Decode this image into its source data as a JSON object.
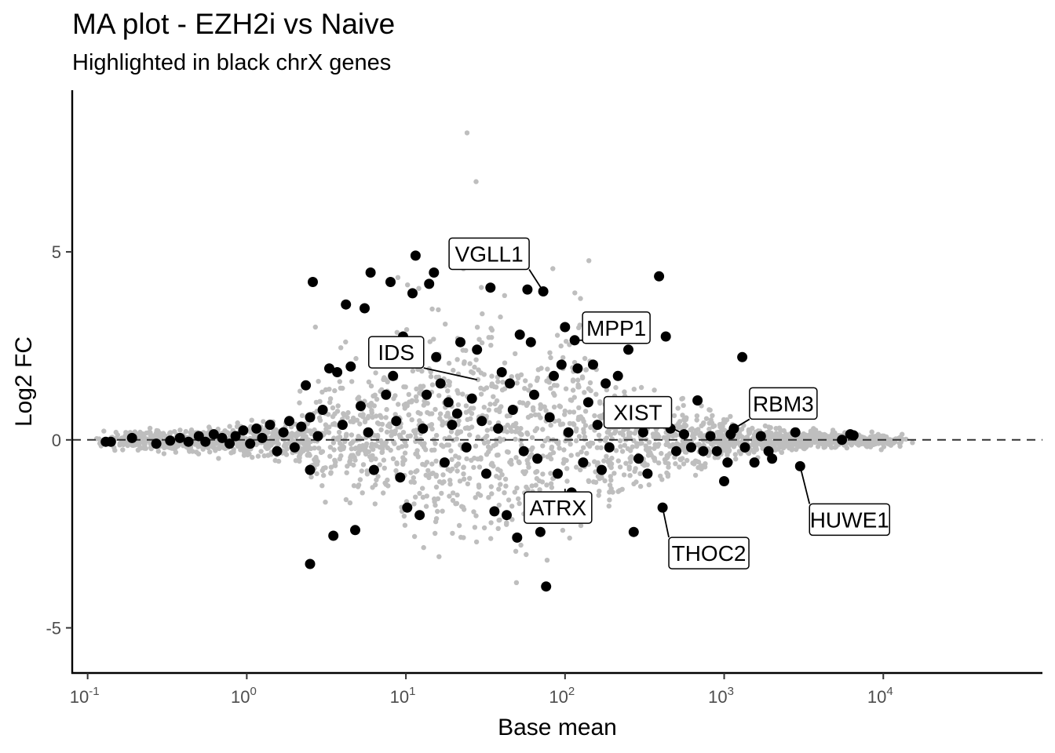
{
  "chart_data": {
    "type": "scatter",
    "title": "MA plot - EZH2i vs Naive",
    "subtitle": "Highlighted in black chrX genes",
    "xlabel": "Base mean",
    "ylabel": "Log2 FC",
    "xscale": "log10",
    "xlim": [
      0.08,
      100000
    ],
    "ylim": [
      -6.2,
      9.3
    ],
    "x_ticks": [
      {
        "value": 0.1,
        "base": "10",
        "exp": "-1"
      },
      {
        "value": 1,
        "base": "10",
        "exp": "0"
      },
      {
        "value": 10,
        "base": "10",
        "exp": "1"
      },
      {
        "value": 100,
        "base": "10",
        "exp": "2"
      },
      {
        "value": 1000,
        "base": "10",
        "exp": "3"
      },
      {
        "value": 10000,
        "base": "10",
        "exp": "4"
      }
    ],
    "y_ticks": [
      {
        "value": -5,
        "label": "-5"
      },
      {
        "value": 0,
        "label": "0"
      },
      {
        "value": 5,
        "label": "5"
      }
    ],
    "reference_line": {
      "y": 0,
      "style": "dashed"
    },
    "colors": {
      "background_genes": "#bebebe",
      "chrX_genes": "#000000",
      "refline": "#333333",
      "axis": "#000000"
    },
    "series": [
      {
        "name": "chrX genes",
        "color": "#000000",
        "points": [
          [
            0.13,
            -0.05
          ],
          [
            0.14,
            -0.05
          ],
          [
            0.19,
            0.05
          ],
          [
            0.27,
            -0.1
          ],
          [
            0.33,
            -0.02
          ],
          [
            0.38,
            0.05
          ],
          [
            0.43,
            -0.05
          ],
          [
            0.5,
            0.1
          ],
          [
            0.55,
            -0.05
          ],
          [
            0.62,
            0.15
          ],
          [
            0.7,
            0.05
          ],
          [
            0.78,
            -0.1
          ],
          [
            0.85,
            0.1
          ],
          [
            0.95,
            0.25
          ],
          [
            1.05,
            -0.1
          ],
          [
            1.15,
            0.3
          ],
          [
            1.25,
            0.05
          ],
          [
            1.4,
            0.4
          ],
          [
            1.55,
            -0.3
          ],
          [
            1.7,
            0.2
          ],
          [
            1.85,
            0.5
          ],
          [
            2.0,
            -0.2
          ],
          [
            2.2,
            0.35
          ],
          [
            2.35,
            1.45
          ],
          [
            2.5,
            0.6
          ],
          [
            2.5,
            -0.8
          ],
          [
            2.5,
            -3.3
          ],
          [
            2.6,
            4.2
          ],
          [
            2.8,
            0.1
          ],
          [
            3.0,
            0.8
          ],
          [
            3.3,
            1.9
          ],
          [
            3.5,
            -2.55
          ],
          [
            3.7,
            1.8
          ],
          [
            4.0,
            0.4
          ],
          [
            4.2,
            3.6
          ],
          [
            4.5,
            1.95
          ],
          [
            4.8,
            -2.4
          ],
          [
            5.2,
            0.9
          ],
          [
            5.5,
            3.5
          ],
          [
            5.8,
            0.2
          ],
          [
            6.0,
            4.45
          ],
          [
            6.3,
            -0.8
          ],
          [
            6.6,
            2.3
          ],
          [
            7.0,
            2.5
          ],
          [
            7.5,
            1.2
          ],
          [
            8.0,
            4.2
          ],
          [
            8.3,
            1.7
          ],
          [
            8.7,
            0.5
          ],
          [
            9.2,
            -1.0
          ],
          [
            9.6,
            2.75
          ],
          [
            10.2,
            -1.8
          ],
          [
            11.0,
            3.9
          ],
          [
            11.5,
            4.9
          ],
          [
            12.2,
            -2.0
          ],
          [
            12.8,
            0.3
          ],
          [
            13.5,
            1.2
          ],
          [
            14.0,
            4.15
          ],
          [
            15.0,
            4.45
          ],
          [
            15.5,
            2.2
          ],
          [
            16.5,
            1.5
          ],
          [
            17.5,
            -0.6
          ],
          [
            18.5,
            1.0
          ],
          [
            19.5,
            0.4
          ],
          [
            21.0,
            0.7
          ],
          [
            22.0,
            2.6
          ],
          [
            24.0,
            -0.2
          ],
          [
            26.0,
            1.1
          ],
          [
            28.0,
            2.4
          ],
          [
            30.0,
            0.5
          ],
          [
            32.0,
            -0.9
          ],
          [
            34.0,
            4.05
          ],
          [
            36.0,
            -1.9
          ],
          [
            38.0,
            0.3
          ],
          [
            40.0,
            1.8
          ],
          [
            43.0,
            -2.0
          ],
          [
            45.0,
            1.5
          ],
          [
            47.0,
            0.8
          ],
          [
            50.0,
            -2.6
          ],
          [
            52.0,
            2.8
          ],
          [
            55.0,
            -0.3
          ],
          [
            58.0,
            4.0
          ],
          [
            61.0,
            2.6
          ],
          [
            64.0,
            1.2
          ],
          [
            67.0,
            -0.5
          ],
          [
            70.0,
            -2.45
          ],
          [
            73.0,
            3.95
          ],
          [
            76.0,
            -3.9
          ],
          [
            80.0,
            0.6
          ],
          [
            85.0,
            1.7
          ],
          [
            90.0,
            -0.9
          ],
          [
            95.0,
            2.0
          ],
          [
            100.0,
            3.0
          ],
          [
            105.0,
            0.2
          ],
          [
            110.0,
            -1.4
          ],
          [
            115.0,
            2.65
          ],
          [
            120.0,
            1.9
          ],
          [
            130.0,
            -0.6
          ],
          [
            140.0,
            1.0
          ],
          [
            150.0,
            2.0
          ],
          [
            160.0,
            0.4
          ],
          [
            170.0,
            -0.8
          ],
          [
            180.0,
            1.5
          ],
          [
            190.0,
            -0.2
          ],
          [
            200.0,
            0.9
          ],
          [
            215.0,
            1.7
          ],
          [
            230.0,
            0.6
          ],
          [
            250.0,
            2.4
          ],
          [
            270.0,
            -2.45
          ],
          [
            290.0,
            -0.5
          ],
          [
            310.0,
            0.2
          ],
          [
            330.0,
            -0.9
          ],
          [
            360.0,
            0.8
          ],
          [
            390.0,
            4.35
          ],
          [
            410.0,
            -1.8
          ],
          [
            430.0,
            2.75
          ],
          [
            460.0,
            0.3
          ],
          [
            500.0,
            -0.3
          ],
          [
            560.0,
            0.15
          ],
          [
            620.0,
            -0.2
          ],
          [
            680.0,
            1.05
          ],
          [
            740.0,
            -0.3
          ],
          [
            820.0,
            0.1
          ],
          [
            900.0,
            -0.3
          ],
          [
            1000.0,
            -1.1
          ],
          [
            1050.0,
            -0.6
          ],
          [
            1100.0,
            0.15
          ],
          [
            1150.0,
            0.3
          ],
          [
            1300.0,
            2.2
          ],
          [
            1350.0,
            -0.2
          ],
          [
            1550.0,
            -0.6
          ],
          [
            1700.0,
            0.1
          ],
          [
            1900.0,
            -0.3
          ],
          [
            2000.0,
            -0.5
          ],
          [
            2800.0,
            0.2
          ],
          [
            3000.0,
            -0.7
          ],
          [
            5500.0,
            0.0
          ],
          [
            6200.0,
            0.15
          ],
          [
            6500.0,
            0.12
          ]
        ]
      }
    ],
    "labels": [
      {
        "text": "VGLL1",
        "x": 73.0,
        "y": 3.95
      },
      {
        "text": "MPP1",
        "x": 115.0,
        "y": 2.65
      },
      {
        "text": "IDS",
        "x": 28.0,
        "y": 1.6
      },
      {
        "text": "XIST",
        "x": 560.0,
        "y": 0.15
      },
      {
        "text": "RBM3",
        "x": 1150.0,
        "y": 0.3
      },
      {
        "text": "ATRX",
        "x": 100.0,
        "y": -1.3
      },
      {
        "text": "THOC2",
        "x": 410.0,
        "y": -1.8
      },
      {
        "text": "HUWE1",
        "x": 3000.0,
        "y": -0.7
      }
    ]
  }
}
